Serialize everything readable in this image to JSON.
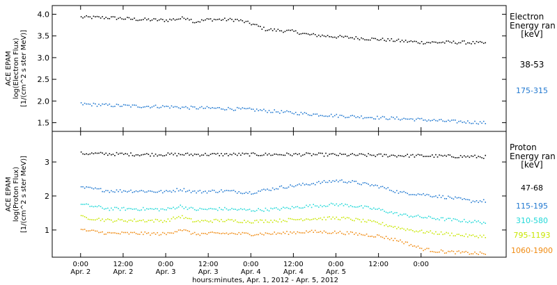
{
  "chart_data": [
    {
      "type": "scatter",
      "panel": "electron",
      "ylabel_lines": [
        "ACE EPAM",
        "log(Electron Flux)",
        "[1/(cm^2 s ster MeV)]"
      ],
      "ylim": [
        1.3,
        4.2
      ],
      "yticks": [
        1.5,
        2.0,
        2.5,
        3.0,
        3.5,
        4.0
      ],
      "ytick_labels": [
        "1.5",
        "2.0",
        "2.5",
        "3.0",
        "3.5",
        "4.0"
      ],
      "legend_title_lines": [
        "Electron",
        "Energy ran",
        "[keV]"
      ],
      "legend_position": "right",
      "series": [
        {
          "name": "38-53",
          "color": "#000000",
          "x": [
            0,
            8,
            16,
            24,
            30,
            32,
            36,
            44,
            48,
            50,
            52,
            60,
            64,
            72,
            84,
            96,
            108,
            114
          ],
          "y": [
            3.93,
            3.92,
            3.88,
            3.86,
            3.92,
            3.82,
            3.88,
            3.87,
            3.78,
            3.72,
            3.65,
            3.6,
            3.53,
            3.48,
            3.42,
            3.35,
            3.35,
            3.33
          ]
        },
        {
          "name": "175-315",
          "color": "#1f77d0",
          "x": [
            0,
            8,
            16,
            24,
            32,
            40,
            48,
            56,
            64,
            72,
            80,
            88,
            96,
            104,
            114
          ],
          "y": [
            1.93,
            1.9,
            1.88,
            1.87,
            1.84,
            1.83,
            1.8,
            1.75,
            1.7,
            1.66,
            1.63,
            1.6,
            1.57,
            1.53,
            1.5
          ]
        }
      ]
    },
    {
      "type": "scatter",
      "panel": "proton",
      "ylabel_lines": [
        "ACE EPAM",
        "log(Proton Flux)",
        "[1/(cm^2 s ster MeV)]"
      ],
      "ylim": [
        0.2,
        3.9
      ],
      "yticks": [
        1,
        2,
        3
      ],
      "ytick_labels": [
        "1",
        "2",
        "3"
      ],
      "legend_title_lines": [
        "Proton",
        "Energy ran",
        "[keV]"
      ],
      "legend_position": "right",
      "series": [
        {
          "name": "47-68",
          "color": "#000000",
          "x": [
            0,
            16,
            32,
            48,
            64,
            80,
            96,
            114
          ],
          "y": [
            3.25,
            3.22,
            3.22,
            3.22,
            3.22,
            3.2,
            3.18,
            3.15
          ]
        },
        {
          "name": "115-195",
          "color": "#1f77d0",
          "x": [
            0,
            8,
            16,
            24,
            28,
            32,
            40,
            48,
            56,
            64,
            72,
            76,
            84,
            90,
            96,
            104,
            110,
            114
          ],
          "y": [
            2.25,
            2.15,
            2.15,
            2.12,
            2.2,
            2.12,
            2.15,
            2.1,
            2.25,
            2.35,
            2.45,
            2.42,
            2.28,
            2.1,
            2.05,
            1.95,
            1.85,
            1.85
          ]
        },
        {
          "name": "310-580",
          "color": "#20d8d8",
          "x": [
            0,
            8,
            16,
            24,
            28,
            32,
            40,
            48,
            56,
            64,
            72,
            76,
            84,
            90,
            96,
            104,
            110,
            114
          ],
          "y": [
            1.75,
            1.62,
            1.62,
            1.6,
            1.7,
            1.6,
            1.62,
            1.58,
            1.62,
            1.7,
            1.75,
            1.72,
            1.6,
            1.45,
            1.38,
            1.3,
            1.25,
            1.22
          ]
        },
        {
          "name": "795-1193",
          "color": "#c8e600",
          "x": [
            0,
            8,
            16,
            24,
            28,
            32,
            40,
            48,
            56,
            64,
            72,
            76,
            84,
            90,
            96,
            104,
            110,
            114
          ],
          "y": [
            1.38,
            1.28,
            1.28,
            1.27,
            1.4,
            1.25,
            1.28,
            1.25,
            1.28,
            1.33,
            1.35,
            1.32,
            1.2,
            1.05,
            0.95,
            0.88,
            0.82,
            0.82
          ]
        },
        {
          "name": "1060-1900",
          "color": "#f08a10",
          "x": [
            0,
            8,
            16,
            24,
            28,
            32,
            40,
            48,
            56,
            64,
            72,
            76,
            84,
            90,
            96,
            100,
            104,
            110,
            114
          ],
          "y": [
            1.0,
            0.9,
            0.9,
            0.88,
            1.02,
            0.88,
            0.9,
            0.88,
            0.9,
            0.95,
            0.93,
            0.9,
            0.82,
            0.68,
            0.45,
            0.38,
            0.35,
            0.32,
            0.3
          ]
        }
      ]
    }
  ],
  "x_axis": {
    "xlim": [
      -8,
      120
    ],
    "ticks": [
      0,
      12,
      24,
      36,
      48,
      60,
      72,
      84,
      96
    ],
    "tick_labels": [
      "0:00",
      "12:00",
      "0:00",
      "12:00",
      "0:00",
      "12:00",
      "0:00",
      "12:00",
      "0:00"
    ],
    "date_labels": [
      "Apr. 2",
      "Apr. 2",
      "Apr. 3",
      "Apr. 3",
      "Apr. 4",
      "Apr. 4",
      "Apr. 5"
    ],
    "date_label_ticks": [
      0,
      12,
      24,
      36,
      48,
      60,
      72
    ],
    "title": "hours:minutes, Apr.  1, 2012 - Apr.  5, 2012"
  }
}
